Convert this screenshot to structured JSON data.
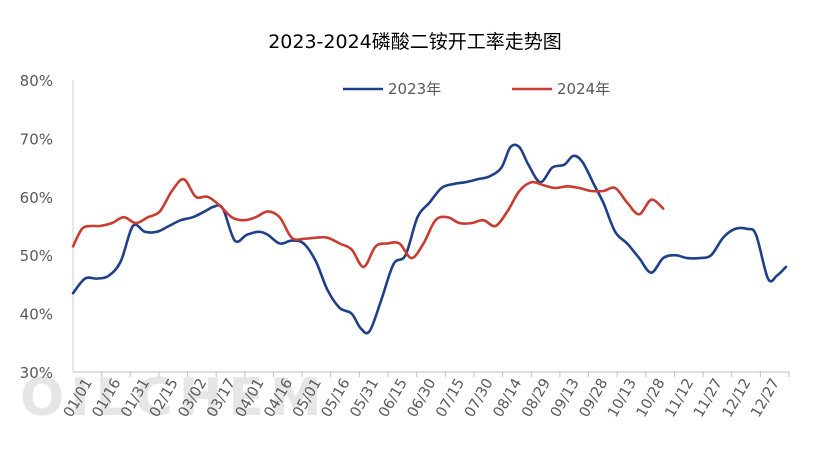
{
  "chart_data": {
    "type": "line",
    "title": "2023-2024磷酸二铵开工率走势图",
    "watermark": "OILCHEM",
    "xlabel": "",
    "ylabel": "",
    "ylim": [
      30,
      80
    ],
    "yticks": [
      "30%",
      "40%",
      "50%",
      "60%",
      "70%",
      "80%"
    ],
    "yaxis_values": [
      30,
      40,
      50,
      60,
      70,
      80
    ],
    "categories": [
      "01/01",
      "01/16",
      "01/31",
      "02/15",
      "03/02",
      "03/17",
      "04/01",
      "04/16",
      "05/01",
      "05/16",
      "05/31",
      "06/15",
      "06/30",
      "07/15",
      "07/30",
      "08/14",
      "08/29",
      "09/13",
      "09/28",
      "10/13",
      "10/28",
      "11/12",
      "11/27",
      "12/12",
      "12/27"
    ],
    "grid": false,
    "legend_position": "top-center",
    "series": [
      {
        "name": "2023年",
        "color": "#1f3f88",
        "points": [
          [
            1,
            43.5
          ],
          [
            5,
            46
          ],
          [
            9,
            46
          ],
          [
            13,
            46.5
          ],
          [
            17,
            49
          ],
          [
            21,
            55
          ],
          [
            25,
            54
          ],
          [
            29,
            54
          ],
          [
            33,
            55
          ],
          [
            37,
            56
          ],
          [
            41,
            56.5
          ],
          [
            45,
            57.5
          ],
          [
            48,
            58.3
          ],
          [
            51,
            58
          ],
          [
            55,
            52.5
          ],
          [
            59,
            53.5
          ],
          [
            63,
            54
          ],
          [
            66,
            53.5
          ],
          [
            70,
            52
          ],
          [
            74,
            52.5
          ],
          [
            78,
            52
          ],
          [
            82,
            49
          ],
          [
            86,
            44
          ],
          [
            90,
            41
          ],
          [
            94,
            40
          ],
          [
            97,
            37.5
          ],
          [
            100,
            37
          ],
          [
            104,
            42.5
          ],
          [
            108,
            48.5
          ],
          [
            112,
            50
          ],
          [
            116,
            56.5
          ],
          [
            120,
            59
          ],
          [
            124,
            61.5
          ],
          [
            128,
            62.2
          ],
          [
            132,
            62.5
          ],
          [
            136,
            63
          ],
          [
            140,
            63.5
          ],
          [
            144,
            65
          ],
          [
            147,
            68.5
          ],
          [
            150,
            68.5
          ],
          [
            153,
            65.5
          ],
          [
            157,
            62.5
          ],
          [
            161,
            65
          ],
          [
            165,
            65.5
          ],
          [
            168,
            67
          ],
          [
            171,
            66
          ],
          [
            175,
            62
          ],
          [
            178,
            59
          ],
          [
            182,
            54
          ],
          [
            186,
            52
          ],
          [
            190,
            49.5
          ],
          [
            194,
            47
          ],
          [
            198,
            49.5
          ],
          [
            202,
            50
          ],
          [
            206,
            49.5
          ],
          [
            210,
            49.5
          ],
          [
            214,
            50
          ],
          [
            218,
            53
          ],
          [
            222,
            54.5
          ],
          [
            226,
            54.5
          ],
          [
            229,
            53.5
          ],
          [
            233,
            46
          ],
          [
            236,
            46.5
          ],
          [
            239,
            48
          ]
        ]
      },
      {
        "name": "2024年",
        "color": "#c83c32",
        "points": [
          [
            1,
            51.5
          ],
          [
            4,
            54.5
          ],
          [
            7,
            55
          ],
          [
            10,
            55
          ],
          [
            14,
            55.5
          ],
          [
            18,
            56.5
          ],
          [
            22,
            55.5
          ],
          [
            26,
            56.5
          ],
          [
            30,
            57.5
          ],
          [
            34,
            61
          ],
          [
            38,
            63
          ],
          [
            42,
            60
          ],
          [
            46,
            60
          ],
          [
            50,
            58.5
          ],
          [
            54,
            56.5
          ],
          [
            58,
            56
          ],
          [
            62,
            56.5
          ],
          [
            66,
            57.5
          ],
          [
            70,
            56.5
          ],
          [
            74,
            53
          ],
          [
            78,
            52.8
          ],
          [
            82,
            53
          ],
          [
            86,
            53
          ],
          [
            90,
            52
          ],
          [
            94,
            51
          ],
          [
            98,
            48
          ],
          [
            102,
            51.5
          ],
          [
            106,
            52
          ],
          [
            110,
            52
          ],
          [
            114,
            49.5
          ],
          [
            118,
            52
          ],
          [
            122,
            56
          ],
          [
            126,
            56.5
          ],
          [
            130,
            55.5
          ],
          [
            134,
            55.5
          ],
          [
            138,
            56
          ],
          [
            142,
            55
          ],
          [
            146,
            57.5
          ],
          [
            150,
            61
          ],
          [
            154,
            62.5
          ],
          [
            158,
            62
          ],
          [
            162,
            61.5
          ],
          [
            166,
            61.8
          ],
          [
            170,
            61.5
          ],
          [
            174,
            61
          ],
          [
            178,
            61
          ],
          [
            182,
            61.5
          ],
          [
            186,
            59
          ],
          [
            190,
            57
          ],
          [
            194,
            59.5
          ],
          [
            198,
            58
          ]
        ]
      }
    ],
    "x_range": [
      1,
      240
    ]
  }
}
